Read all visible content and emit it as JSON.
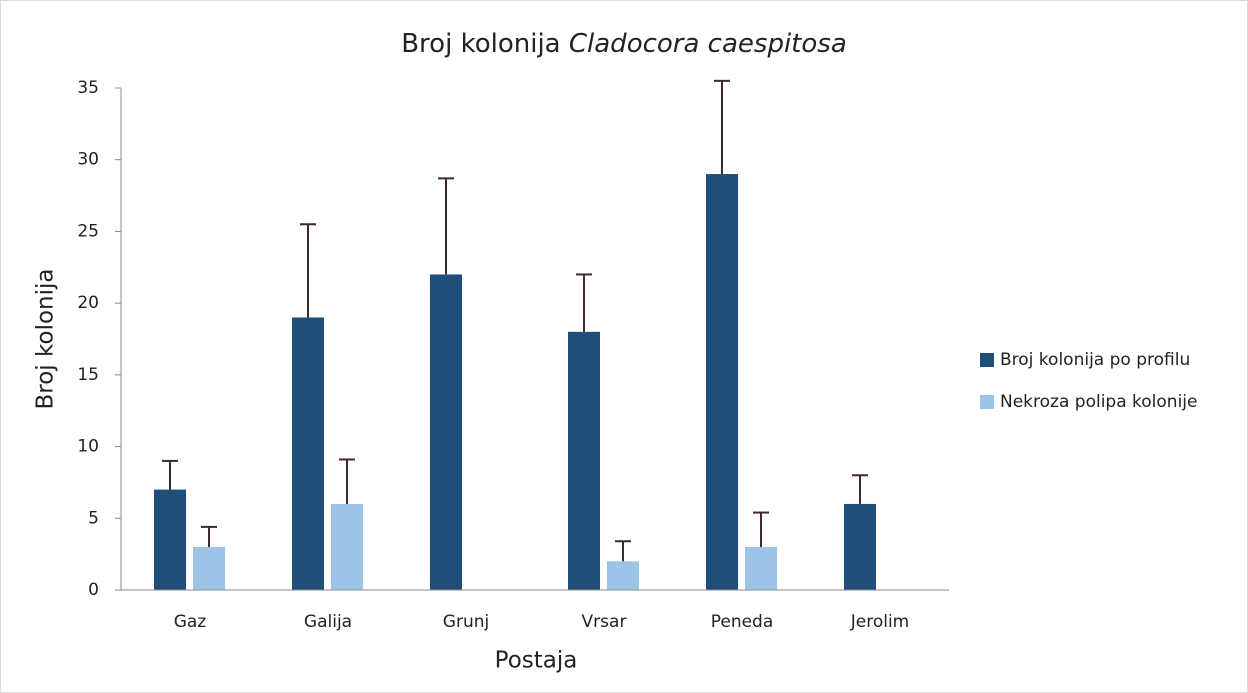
{
  "chart_data": {
    "type": "bar",
    "title": [
      "Broj kolonija",
      "Cladocora caespitosa"
    ],
    "x_label": "Postaja",
    "y_label": "Broj kolonija",
    "categories": [
      "Gaz",
      "Galija",
      "Grunj",
      "Vrsar",
      "Peneda",
      "Jerolim"
    ],
    "series": [
      {
        "name": "Broj kolonija po profilu",
        "color": "#1f4e79",
        "values": [
          7,
          19,
          22,
          18,
          29,
          6
        ],
        "errors": [
          2,
          6.5,
          6.7,
          4,
          6.5,
          2
        ]
      },
      {
        "name": "Nekroza polipa kolonije",
        "color": "#9dc3e6",
        "values": [
          3,
          6,
          null,
          2,
          3,
          null
        ],
        "errors": [
          1.4,
          3.1,
          null,
          1.4,
          2.4,
          null
        ]
      }
    ],
    "error_color": "#3f2a2a",
    "ylim": [
      0,
      35
    ],
    "yticks": [
      0,
      5,
      10,
      15,
      20,
      25,
      30,
      35
    ],
    "grid": false,
    "legend": "right"
  }
}
